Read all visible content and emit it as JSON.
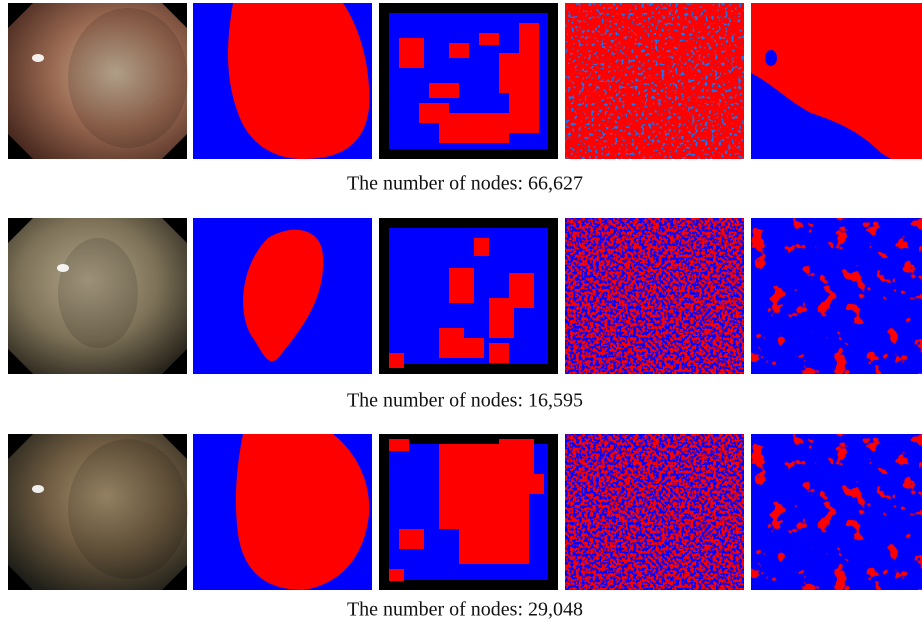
{
  "figure": {
    "rows": [
      {
        "caption": "The number of nodes: 66,627"
      },
      {
        "caption": "The number of nodes: 16,595"
      },
      {
        "caption": "The number of nodes: 29,048"
      }
    ]
  }
}
